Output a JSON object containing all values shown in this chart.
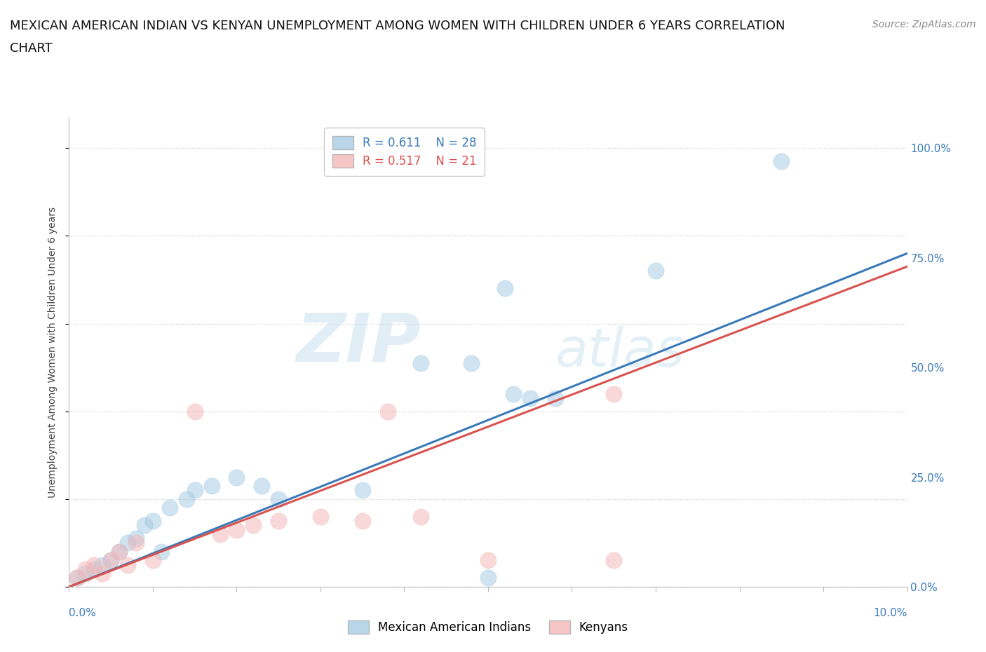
{
  "title_line1": "MEXICAN AMERICAN INDIAN VS KENYAN UNEMPLOYMENT AMONG WOMEN WITH CHILDREN UNDER 6 YEARS CORRELATION",
  "title_line2": "CHART",
  "source": "Source: ZipAtlas.com",
  "ylabel": "Unemployment Among Women with Children Under 6 years",
  "watermark_zip": "ZIP",
  "watermark_atlas": "atlas",
  "legend_blue_R": "R = 0.611",
  "legend_blue_N": "N = 28",
  "legend_pink_R": "R = 0.517",
  "legend_pink_N": "N = 21",
  "blue_color": "#a8cce4",
  "pink_color": "#f4b8b8",
  "blue_line_color": "#3a7ab8",
  "pink_line_color": "#d9534f",
  "right_axis_labels": [
    "0.0%",
    "25.0%",
    "50.0%",
    "75.0%",
    "100.0%"
  ],
  "right_axis_values": [
    0,
    25,
    50,
    75,
    100
  ],
  "blue_scatter_x": [
    0.1,
    0.2,
    0.3,
    0.4,
    0.5,
    0.6,
    0.7,
    0.8,
    0.9,
    1.0,
    1.1,
    1.2,
    1.4,
    1.5,
    1.7,
    2.0,
    2.3,
    2.5,
    3.5,
    4.2,
    4.8,
    5.0,
    5.3,
    5.5,
    5.8,
    7.0,
    8.5,
    5.2
  ],
  "blue_scatter_y": [
    2,
    3,
    4,
    5,
    6,
    8,
    10,
    11,
    14,
    15,
    8,
    18,
    20,
    22,
    23,
    25,
    23,
    20,
    22,
    51,
    51,
    2,
    44,
    43,
    43,
    72,
    97,
    68
  ],
  "pink_scatter_x": [
    0.1,
    0.2,
    0.3,
    0.4,
    0.5,
    0.6,
    0.7,
    0.8,
    1.0,
    1.5,
    1.8,
    2.0,
    2.2,
    2.5,
    3.0,
    3.5,
    3.8,
    4.2,
    5.0,
    6.5,
    6.5
  ],
  "pink_scatter_y": [
    2,
    4,
    5,
    3,
    6,
    8,
    5,
    10,
    6,
    40,
    12,
    13,
    14,
    15,
    16,
    15,
    40,
    16,
    6,
    44,
    6
  ],
  "blue_line_x": [
    0,
    10
  ],
  "blue_line_y": [
    0,
    76
  ],
  "pink_line_x": [
    0,
    10
  ],
  "pink_line_y": [
    0,
    73
  ],
  "xmin": 0,
  "xmax": 10,
  "ymin": 0,
  "ymax": 107,
  "grid_color": "#cccccc",
  "background_color": "#ffffff",
  "title_fontsize": 13,
  "axis_label_fontsize": 10,
  "tick_fontsize": 11,
  "legend_fontsize": 12,
  "source_fontsize": 10,
  "scatter_size": 280,
  "scatter_alpha": 0.55,
  "line_width": 2.2
}
